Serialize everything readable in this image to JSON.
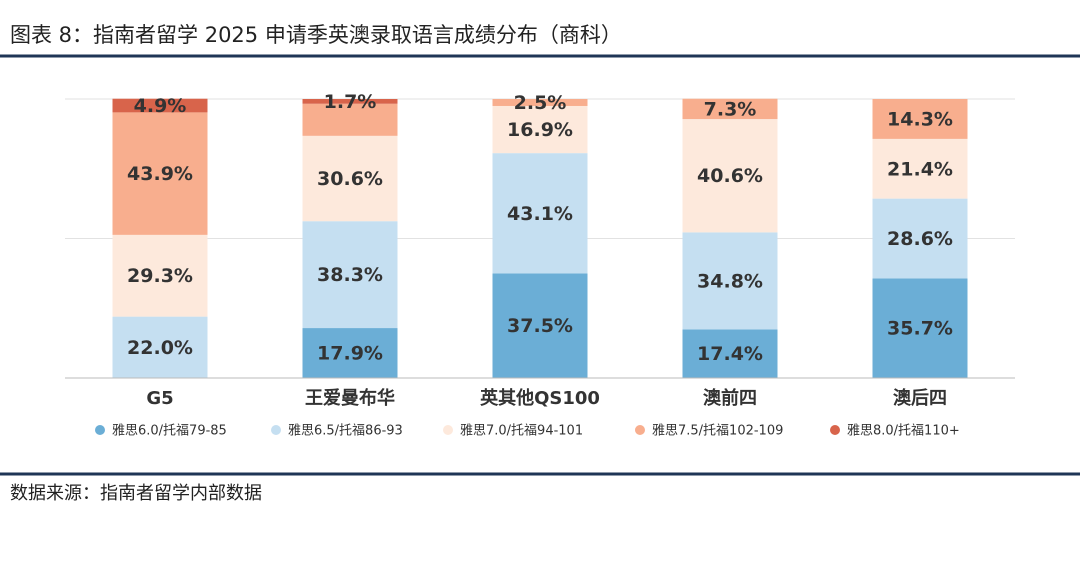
{
  "chart_data": {
    "type": "stacked-bar",
    "title": "图表 8：指南者留学 2025 申请季英澳录取语言成绩分布（商科）",
    "source": "数据来源：指南者留学内部数据",
    "categories": [
      "G5",
      "王爱曼布华",
      "英其他QS100",
      "澳前四",
      "澳后四"
    ],
    "ylim": [
      0,
      100
    ],
    "grid": true,
    "series": [
      {
        "name": "雅思6.0/托福79-85",
        "color": "#6baed6",
        "values": [
          null,
          17.9,
          37.5,
          17.4,
          35.7
        ],
        "value_labels": [
          null,
          "17.9%",
          "37.5%",
          "17.4%",
          "35.7%"
        ]
      },
      {
        "name": "雅思6.5/托福86-93",
        "color": "#c5dff1",
        "values": [
          22.0,
          38.3,
          43.1,
          34.8,
          28.6
        ],
        "value_labels": [
          "22.0%",
          "38.3%",
          "43.1%",
          "34.8%",
          "28.6%"
        ]
      },
      {
        "name": "雅思7.0/托福94-101",
        "color": "#fde9dc",
        "values": [
          29.3,
          30.6,
          16.9,
          40.6,
          21.4
        ],
        "value_labels": [
          "29.3%",
          "30.6%",
          "16.9%",
          "40.6%",
          "21.4%"
        ]
      },
      {
        "name": "雅思7.5/托福102-109",
        "color": "#f8ae8e",
        "values": [
          43.9,
          11.5,
          2.5,
          7.3,
          14.3
        ],
        "value_labels": [
          "43.9%",
          null,
          "2.5%",
          "7.3%",
          "14.3%"
        ]
      },
      {
        "name": "雅思8.0/托福110+",
        "color": "#d8644b",
        "values": [
          4.9,
          1.7,
          null,
          null,
          null
        ],
        "value_labels": [
          "4.9%",
          "1.7%",
          null,
          null,
          null
        ]
      }
    ]
  }
}
